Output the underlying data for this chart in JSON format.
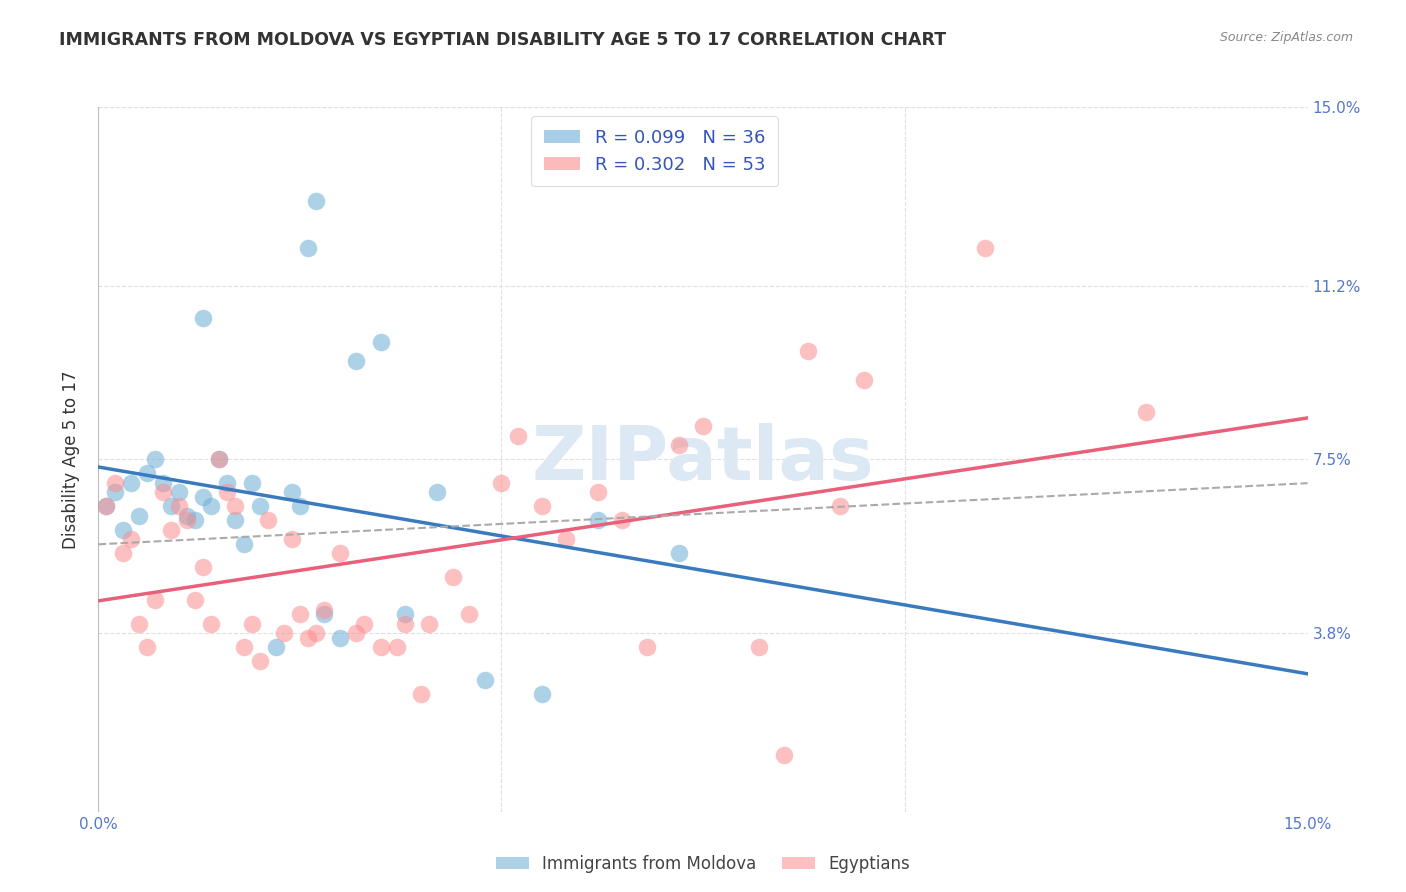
{
  "title": "IMMIGRANTS FROM MOLDOVA VS EGYPTIAN DISABILITY AGE 5 TO 17 CORRELATION CHART",
  "source": "Source: ZipAtlas.com",
  "ylabel": "Disability Age 5 to 17",
  "xlim": [
    0.0,
    0.15
  ],
  "ylim": [
    0.0,
    0.15
  ],
  "ytick_labels_right": [
    "15.0%",
    "11.2%",
    "7.5%",
    "3.8%"
  ],
  "ytick_vals_right": [
    0.15,
    0.112,
    0.075,
    0.038
  ],
  "moldova_color": "#6baed6",
  "egypt_color": "#fc8d8d",
  "moldova_R": 0.099,
  "moldova_N": 36,
  "egypt_R": 0.302,
  "egypt_N": 53,
  "moldova_x": [
    0.001,
    0.002,
    0.003,
    0.004,
    0.005,
    0.006,
    0.007,
    0.008,
    0.009,
    0.01,
    0.011,
    0.012,
    0.013,
    0.013,
    0.014,
    0.015,
    0.016,
    0.017,
    0.018,
    0.019,
    0.02,
    0.022,
    0.024,
    0.025,
    0.026,
    0.027,
    0.028,
    0.03,
    0.032,
    0.035,
    0.038,
    0.042,
    0.048,
    0.055,
    0.062,
    0.072
  ],
  "moldova_y": [
    0.065,
    0.068,
    0.06,
    0.07,
    0.063,
    0.072,
    0.075,
    0.07,
    0.065,
    0.068,
    0.063,
    0.062,
    0.067,
    0.105,
    0.065,
    0.075,
    0.07,
    0.062,
    0.057,
    0.07,
    0.065,
    0.035,
    0.068,
    0.065,
    0.12,
    0.13,
    0.042,
    0.037,
    0.096,
    0.1,
    0.042,
    0.068,
    0.028,
    0.025,
    0.062,
    0.055
  ],
  "egypt_x": [
    0.001,
    0.002,
    0.003,
    0.004,
    0.005,
    0.006,
    0.007,
    0.008,
    0.009,
    0.01,
    0.011,
    0.012,
    0.013,
    0.014,
    0.015,
    0.016,
    0.017,
    0.018,
    0.019,
    0.02,
    0.021,
    0.023,
    0.024,
    0.025,
    0.026,
    0.027,
    0.028,
    0.03,
    0.032,
    0.033,
    0.035,
    0.037,
    0.038,
    0.04,
    0.041,
    0.044,
    0.046,
    0.05,
    0.052,
    0.055,
    0.058,
    0.062,
    0.065,
    0.068,
    0.072,
    0.075,
    0.082,
    0.085,
    0.088,
    0.092,
    0.095,
    0.11,
    0.13
  ],
  "egypt_y": [
    0.065,
    0.07,
    0.055,
    0.058,
    0.04,
    0.035,
    0.045,
    0.068,
    0.06,
    0.065,
    0.062,
    0.045,
    0.052,
    0.04,
    0.075,
    0.068,
    0.065,
    0.035,
    0.04,
    0.032,
    0.062,
    0.038,
    0.058,
    0.042,
    0.037,
    0.038,
    0.043,
    0.055,
    0.038,
    0.04,
    0.035,
    0.035,
    0.04,
    0.025,
    0.04,
    0.05,
    0.042,
    0.07,
    0.08,
    0.065,
    0.058,
    0.068,
    0.062,
    0.035,
    0.078,
    0.082,
    0.035,
    0.012,
    0.098,
    0.065,
    0.092,
    0.12,
    0.085
  ],
  "watermark": "ZIPatlas",
  "background_color": "#ffffff",
  "grid_color": "#e0e0e0"
}
